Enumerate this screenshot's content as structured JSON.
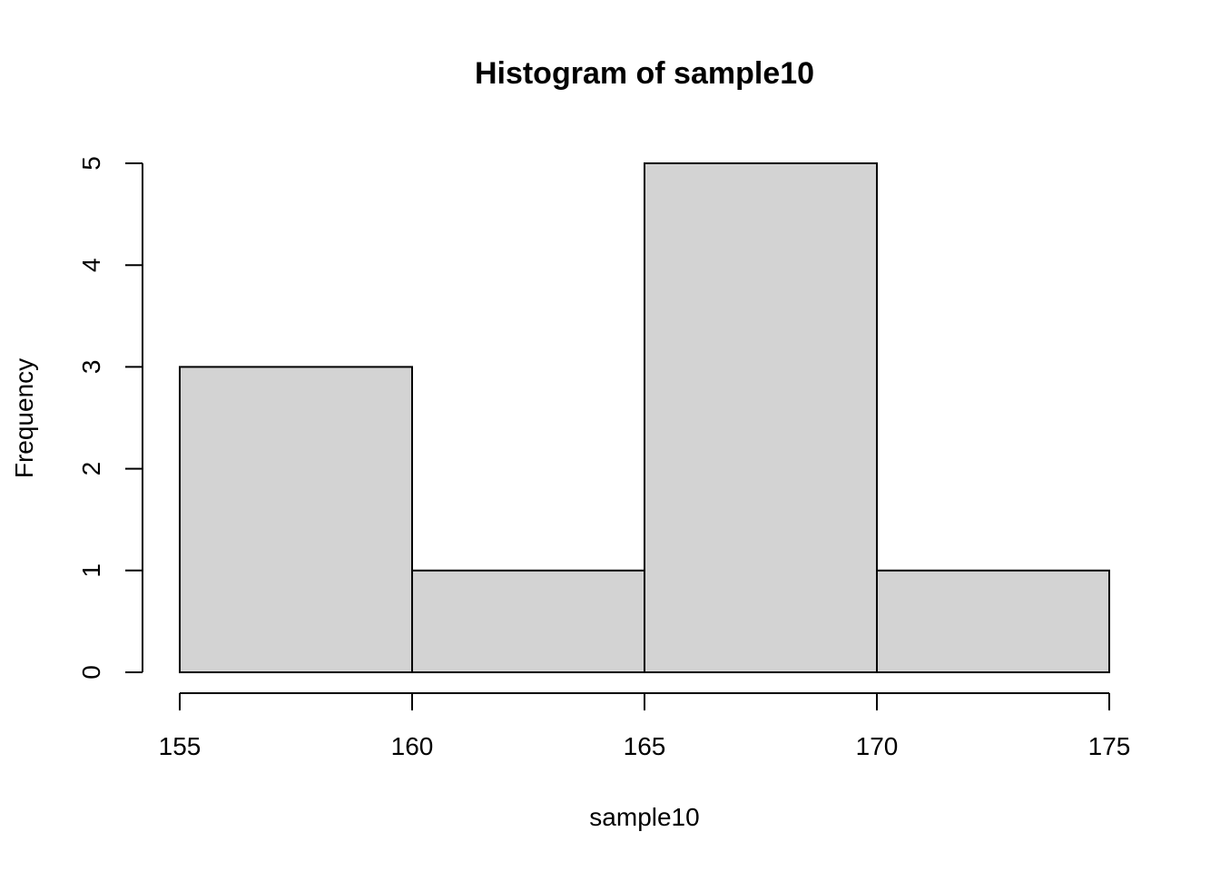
{
  "chart_data": {
    "type": "bar",
    "title": "Histogram of sample10",
    "xlabel": "sample10",
    "ylabel": "Frequency",
    "bins": [
      {
        "start": 155,
        "end": 160,
        "count": 3
      },
      {
        "start": 160,
        "end": 165,
        "count": 1
      },
      {
        "start": 165,
        "end": 170,
        "count": 5
      },
      {
        "start": 170,
        "end": 175,
        "count": 1
      }
    ],
    "x_ticks": [
      155,
      160,
      165,
      170,
      175
    ],
    "y_ticks": [
      0,
      1,
      2,
      3,
      4,
      5
    ],
    "xlim": [
      155,
      175
    ],
    "ylim": [
      0,
      5
    ],
    "grid": false,
    "colors": {
      "bar_fill": "#d3d3d3",
      "bar_stroke": "#000000"
    }
  }
}
